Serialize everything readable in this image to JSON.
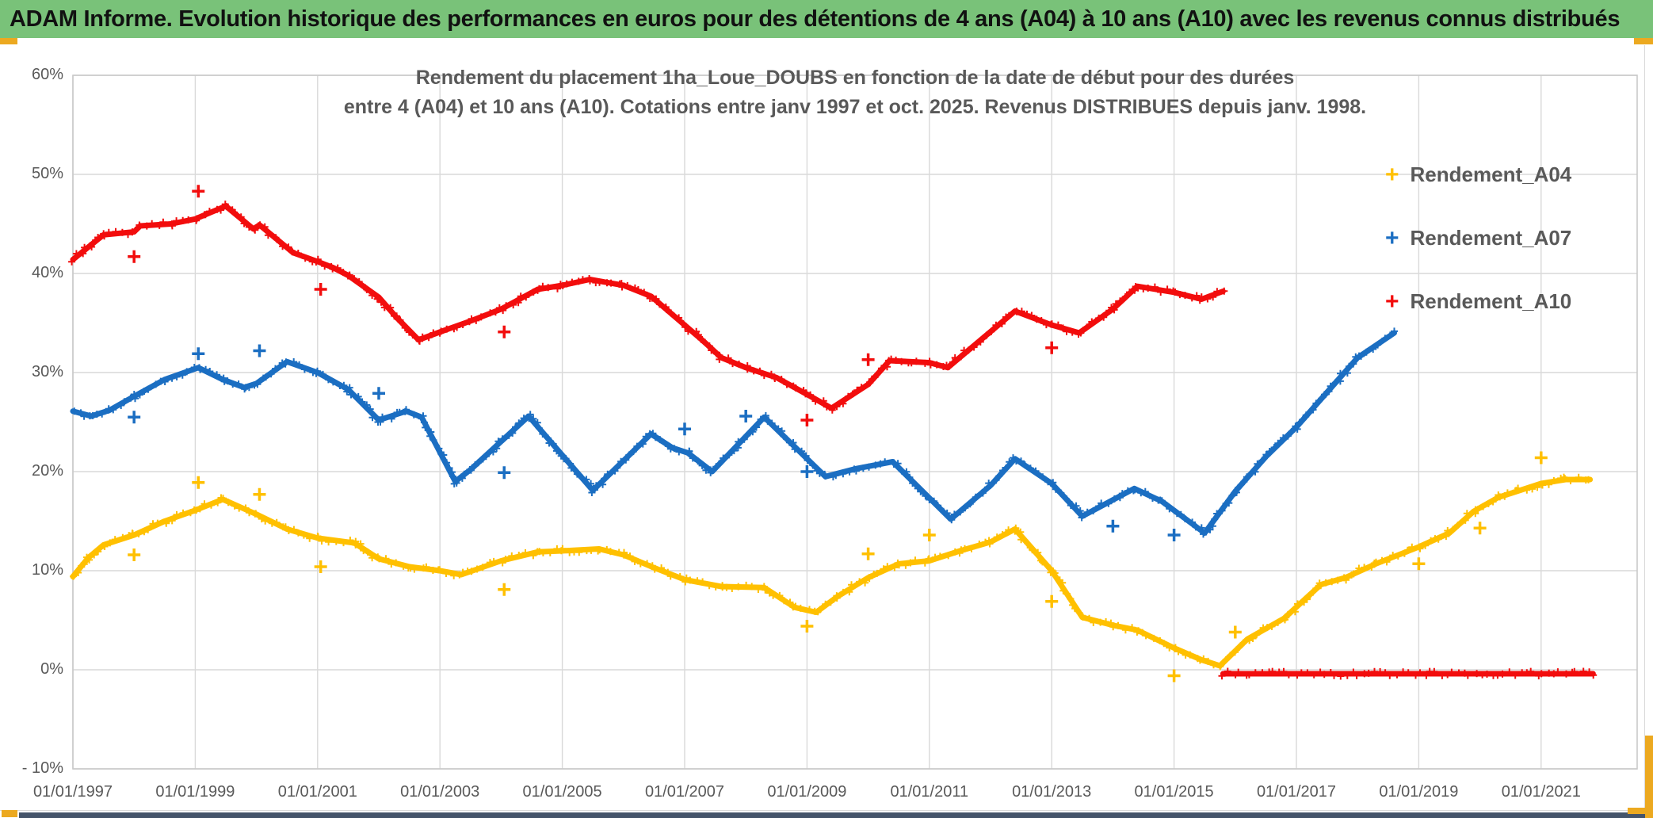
{
  "banner": {
    "title": "ADAM Informe. Evolution historique des performances en euros pour des détentions de 4 ans (A04) à 10 ans (A10) avec les revenus connus distribués"
  },
  "theme": {
    "banner_green": "#79C279",
    "accent_orange": "#ECA920",
    "bottom_strip_blue": "#44546A",
    "grid_gray": "#D9D9D9",
    "frame_gray": "#C9C9C9",
    "text_gray": "#595959",
    "series_yellow": "#FFC000",
    "series_blue": "#1B6EC2",
    "series_red": "#F20D0D"
  },
  "chart_data": {
    "type": "line",
    "title_line1": "Rendement du placement 1ha_Loue_DOUBS en fonction de la date de début pour des durées",
    "title_line2": "entre 4 (A04) et 10 ans (A10). Cotations entre janv 1997 et oct. 2025. Revenus DISTRIBUES depuis janv. 1998.",
    "grid": true,
    "legend_position": "right-top",
    "xaxis": {
      "min": 1997,
      "max": 2022.6,
      "ticks": [
        1997,
        1999,
        2001,
        2003,
        2005,
        2007,
        2009,
        2011,
        2013,
        2015,
        2017,
        2019,
        2021
      ],
      "labels": [
        "01/01/1997",
        "01/01/1999",
        "01/01/2001",
        "01/01/2003",
        "01/01/2005",
        "01/01/2007",
        "01/01/2009",
        "01/01/2011",
        "01/01/2013",
        "01/01/2015",
        "01/01/2017",
        "01/01/2019",
        "01/01/2021"
      ]
    },
    "yaxis": {
      "min": -10,
      "max": 60,
      "ticks": [
        60,
        50,
        40,
        30,
        20,
        10,
        0,
        -10
      ],
      "labels": [
        "60%",
        "50%",
        "40%",
        "30%",
        "20%",
        "10%",
        "0%",
        "- 10%"
      ]
    },
    "legend": [
      {
        "label": "Rendement_A04",
        "color": "#FFC000"
      },
      {
        "label": "Rendement_A07",
        "color": "#1B6EC2"
      },
      {
        "label": "Rendement_A10",
        "color": "#F20D0D"
      }
    ],
    "series": [
      {
        "name": "Rendement_A04",
        "color": "#FFC000",
        "points": [
          [
            1997.0,
            9.4
          ],
          [
            1997.25,
            11.3
          ],
          [
            1997.5,
            12.6
          ],
          [
            1998.0,
            13.6
          ],
          [
            1998.5,
            15.0
          ],
          [
            1999.0,
            16.1
          ],
          [
            1999.45,
            17.2
          ],
          [
            2000.0,
            15.7
          ],
          [
            2000.5,
            14.2
          ],
          [
            2001.0,
            13.3
          ],
          [
            2001.6,
            12.8
          ],
          [
            2002.0,
            11.2
          ],
          [
            2002.5,
            10.4
          ],
          [
            2003.0,
            10.0
          ],
          [
            2003.35,
            9.6
          ],
          [
            2004.0,
            11.0
          ],
          [
            2004.6,
            11.9
          ],
          [
            2005.0,
            12.0
          ],
          [
            2005.6,
            12.2
          ],
          [
            2006.0,
            11.6
          ],
          [
            2006.5,
            10.3
          ],
          [
            2007.0,
            9.1
          ],
          [
            2007.6,
            8.4
          ],
          [
            2008.3,
            8.3
          ],
          [
            2008.8,
            6.3
          ],
          [
            2009.15,
            5.8
          ],
          [
            2009.5,
            7.4
          ],
          [
            2010.0,
            9.3
          ],
          [
            2010.5,
            10.7
          ],
          [
            2011.0,
            11.0
          ],
          [
            2011.5,
            12.0
          ],
          [
            2012.0,
            12.9
          ],
          [
            2012.4,
            14.2
          ],
          [
            2013.0,
            10.0
          ],
          [
            2013.5,
            5.3
          ],
          [
            2014.0,
            4.5
          ],
          [
            2014.4,
            4.0
          ],
          [
            2015.0,
            2.2
          ],
          [
            2015.45,
            1.0
          ],
          [
            2015.75,
            0.4
          ],
          [
            2016.2,
            3.1
          ],
          [
            2016.8,
            5.2
          ],
          [
            2017.4,
            8.6
          ],
          [
            2017.8,
            9.3
          ],
          [
            2018.3,
            10.7
          ],
          [
            2019.0,
            12.4
          ],
          [
            2019.5,
            13.8
          ],
          [
            2019.9,
            16.0
          ],
          [
            2020.3,
            17.4
          ],
          [
            2021.0,
            18.8
          ],
          [
            2021.4,
            19.2
          ],
          [
            2021.8,
            19.2
          ]
        ],
        "outliers": [
          [
            1998.0,
            11.6
          ],
          [
            1999.05,
            18.9
          ],
          [
            2000.05,
            17.7
          ],
          [
            2001.05,
            10.4
          ],
          [
            2004.05,
            8.1
          ],
          [
            2009.0,
            4.4
          ],
          [
            2010.0,
            11.7
          ],
          [
            2011.0,
            13.6
          ],
          [
            2013.0,
            6.9
          ],
          [
            2015.0,
            -0.6
          ],
          [
            2016.0,
            3.8
          ],
          [
            2019.0,
            10.7
          ],
          [
            2020.0,
            14.3
          ],
          [
            2021.0,
            21.4
          ]
        ]
      },
      {
        "name": "Rendement_A07",
        "color": "#1B6EC2",
        "points": [
          [
            1997.0,
            26.1
          ],
          [
            1997.3,
            25.6
          ],
          [
            1997.6,
            26.2
          ],
          [
            1998.0,
            27.6
          ],
          [
            1998.5,
            29.3
          ],
          [
            1999.05,
            30.5
          ],
          [
            1999.45,
            29.3
          ],
          [
            1999.8,
            28.5
          ],
          [
            2000.0,
            28.9
          ],
          [
            2000.5,
            31.1
          ],
          [
            2001.0,
            30.0
          ],
          [
            2001.5,
            28.3
          ],
          [
            2002.0,
            25.2
          ],
          [
            2002.45,
            26.1
          ],
          [
            2002.7,
            25.5
          ],
          [
            2003.25,
            19.0
          ],
          [
            2003.5,
            20.2
          ],
          [
            2004.45,
            25.6
          ],
          [
            2005.05,
            21.3
          ],
          [
            2005.5,
            18.1
          ],
          [
            2006.45,
            23.8
          ],
          [
            2006.8,
            22.4
          ],
          [
            2007.05,
            21.9
          ],
          [
            2007.45,
            20.0
          ],
          [
            2008.3,
            25.5
          ],
          [
            2009.3,
            19.5
          ],
          [
            2009.8,
            20.3
          ],
          [
            2010.4,
            21.0
          ],
          [
            2011.35,
            15.2
          ],
          [
            2012.0,
            18.6
          ],
          [
            2012.4,
            21.3
          ],
          [
            2013.0,
            18.8
          ],
          [
            2013.5,
            15.5
          ],
          [
            2014.35,
            18.3
          ],
          [
            2014.8,
            17.0
          ],
          [
            2015.5,
            13.8
          ],
          [
            2016.0,
            18.0
          ],
          [
            2016.5,
            21.5
          ],
          [
            2017.0,
            24.5
          ],
          [
            2017.5,
            28.0
          ],
          [
            2018.0,
            31.5
          ],
          [
            2018.6,
            34.0
          ]
        ],
        "outliers": [
          [
            1998.0,
            25.5
          ],
          [
            1999.05,
            31.9
          ],
          [
            2000.05,
            32.2
          ],
          [
            2002.0,
            27.9
          ],
          [
            2004.05,
            19.9
          ],
          [
            2007.0,
            24.3
          ],
          [
            2008.0,
            25.6
          ],
          [
            2009.0,
            20.0
          ],
          [
            2014.0,
            14.5
          ],
          [
            2015.0,
            13.6
          ]
        ]
      },
      {
        "name": "Rendement_A10",
        "color": "#F20D0D",
        "points": [
          [
            1997.0,
            41.4
          ],
          [
            1997.5,
            43.9
          ],
          [
            1998.0,
            44.2
          ],
          [
            1998.1,
            44.8
          ],
          [
            1998.6,
            45.0
          ],
          [
            1999.0,
            45.5
          ],
          [
            1999.15,
            45.9
          ],
          [
            1999.5,
            46.8
          ],
          [
            1999.95,
            44.5
          ],
          [
            2000.05,
            44.9
          ],
          [
            2000.6,
            42.1
          ],
          [
            2001.0,
            41.2
          ],
          [
            2001.25,
            40.6
          ],
          [
            2001.5,
            39.8
          ],
          [
            2002.0,
            37.6
          ],
          [
            2002.3,
            35.5
          ],
          [
            2002.65,
            33.3
          ],
          [
            2003.0,
            34.1
          ],
          [
            2003.5,
            35.2
          ],
          [
            2004.0,
            36.4
          ],
          [
            2004.6,
            38.4
          ],
          [
            2005.0,
            38.8
          ],
          [
            2005.45,
            39.4
          ],
          [
            2006.0,
            38.8
          ],
          [
            2006.45,
            37.7
          ],
          [
            2007.3,
            33.2
          ],
          [
            2007.6,
            31.5
          ],
          [
            2008.0,
            30.5
          ],
          [
            2008.5,
            29.5
          ],
          [
            2009.0,
            27.8
          ],
          [
            2009.4,
            26.4
          ],
          [
            2010.0,
            28.8
          ],
          [
            2010.35,
            31.2
          ],
          [
            2011.0,
            31.0
          ],
          [
            2011.3,
            30.5
          ],
          [
            2012.4,
            36.2
          ],
          [
            2013.0,
            34.8
          ],
          [
            2013.45,
            34.0
          ],
          [
            2014.0,
            36.4
          ],
          [
            2014.4,
            38.7
          ],
          [
            2015.0,
            38.1
          ],
          [
            2015.45,
            37.4
          ],
          [
            2015.8,
            38.2
          ]
        ],
        "flat_zero_segment": [
          [
            2015.8,
            -0.4
          ],
          [
            2021.85,
            -0.4
          ]
        ],
        "outliers": [
          [
            1998.0,
            41.7
          ],
          [
            1999.05,
            48.3
          ],
          [
            2001.05,
            38.4
          ],
          [
            2004.05,
            34.1
          ],
          [
            2009.0,
            25.2
          ],
          [
            2010.0,
            31.3
          ],
          [
            2013.0,
            32.5
          ]
        ]
      }
    ]
  }
}
